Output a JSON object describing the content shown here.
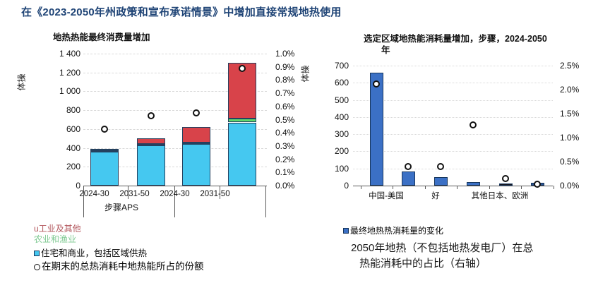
{
  "page_title": "在《2023-2050年州政策和宣布承诺情景》中增加直接常规地热使用",
  "chart_data": [
    {
      "type": "bar",
      "subtype": "stacked-bars-with-share-dots",
      "title": "地热热能最终消费量增加",
      "ylabel": "体操",
      "categories": [
        "2024-30",
        "2031-50",
        "2024-30",
        "2031-50"
      ],
      "group_label": "步骤APS",
      "series": [
        {
          "name": "住宅和商业，包括区域供热",
          "color": "#45c8f0",
          "values": [
            360,
            425,
            445,
            670
          ]
        },
        {
          "name": "农业和渔业",
          "color": "#5fd96d",
          "values": [
            12,
            20,
            12,
            40
          ]
        },
        {
          "name": "工业及其他",
          "color": "#d8434a",
          "values": [
            18,
            60,
            168,
            595
          ]
        }
      ],
      "scatter": {
        "name": "在期末的总热消耗中地热能所占的份额",
        "axis": "right",
        "values_pct": [
          0.43,
          0.53,
          0.55,
          0.89
        ]
      },
      "left_axis": {
        "min": 0,
        "max": 1400,
        "tick_labels": [
          "1 400",
          "1 200",
          "1 000",
          "800",
          "600",
          "400",
          "200",
          "0"
        ]
      },
      "right_axis": {
        "min": 0,
        "max": 1.0,
        "tick_labels": [
          "1.0%",
          "0.9%",
          "0.8%",
          "0.7%",
          "0.6%",
          "0.5%",
          "0.4%",
          "0.3%",
          "0.2%",
          "0.1%",
          "0.0%"
        ]
      },
      "grid": true,
      "legend_position": "bottom-left"
    },
    {
      "type": "bar",
      "subtype": "bars-with-share-dots",
      "title_prefix": "选定区域地热能消耗量增加，步骤，",
      "title_bold": "2024-2050",
      "title_line2": "年",
      "ylabel": "体操",
      "category_labels": [
        "中国-美国",
        "好",
        "其他日本、欧洲"
      ],
      "bar_series": {
        "name": "最终地热热消耗量的变化",
        "values": [
          660,
          82,
          48,
          20,
          12,
          18
        ],
        "colors": [
          "#3b70c5",
          "#3b70c5",
          "#3b70c5",
          "#3b70c5",
          "#15161f",
          "#2c5391"
        ]
      },
      "scatter": {
        "name": "2050年地热（不包括地热发电厂）在总热能消耗中的占比（右轴）",
        "axis": "right",
        "values_pct": [
          2.12,
          0.39,
          0.4,
          1.27,
          0.15,
          0.03
        ]
      },
      "left_axis": {
        "min": 0,
        "max": 700,
        "tick_labels": [
          "700",
          "600",
          "500",
          "400",
          "300",
          "200",
          "100",
          "0"
        ]
      },
      "right_axis": {
        "min": 0,
        "max": 2.5,
        "tick_labels": [
          "2.5%",
          "2.0%",
          "1.5%",
          "1.0%",
          "0.5%",
          "0.0%"
        ]
      },
      "grid": true,
      "legend_position": "bottom-left"
    }
  ],
  "left_legend": {
    "industry": {
      "label": "u工业及其他",
      "color": "#b2555b"
    },
    "agriculture": {
      "label": "农业和渔业",
      "color": "#7fca92"
    },
    "residential": {
      "label": "住宅和商业，包括区域供热",
      "marker_color": "#45c8f0"
    },
    "share": {
      "label": "在期末的总热消耗中地热能所占的份额"
    }
  },
  "right_legend": {
    "bar": {
      "label": "最终地热热消耗量的变化",
      "marker_color": "#3b70c5"
    }
  },
  "caption": {
    "line1": "2050年地热（不包括地热发电厂）在总",
    "line2": "热能消耗中的占比（右轴）"
  }
}
